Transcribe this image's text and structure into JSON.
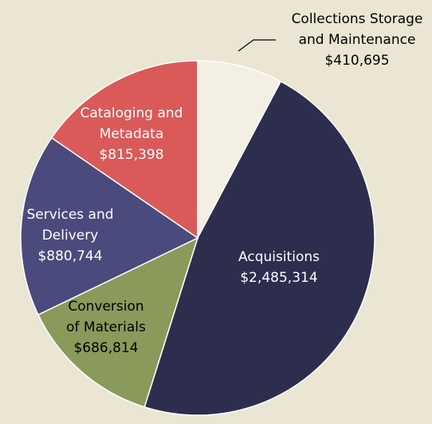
{
  "chart_data": {
    "type": "pie",
    "categories": [
      "Collections Storage and Maintenance",
      "Acquisitions",
      "Conversion of Materials",
      "Services and Delivery",
      "Cataloging and Metadata"
    ],
    "values": [
      410695,
      2485314,
      686814,
      880744,
      815398
    ],
    "value_labels": [
      "$410,695",
      "$2,485,314",
      "$686,814",
      "$880,744",
      "$815,398"
    ],
    "colors": [
      "#f3efe3",
      "#2d2d4e",
      "#8a9a5b",
      "#4b4a7c",
      "#d95a59"
    ]
  }
}
